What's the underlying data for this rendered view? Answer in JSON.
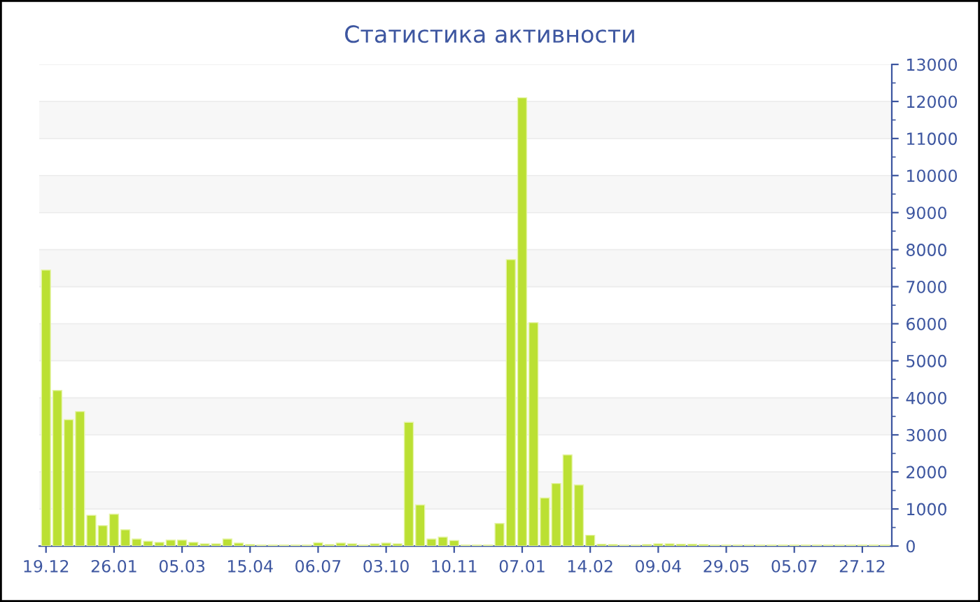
{
  "chart_data": {
    "type": "bar",
    "title": "Статистика активности",
    "categories": [
      "19.12",
      null,
      null,
      null,
      null,
      null,
      "26.01",
      null,
      null,
      null,
      null,
      null,
      "05.03",
      null,
      null,
      null,
      null,
      null,
      "15.04",
      null,
      null,
      null,
      null,
      null,
      "06.07",
      null,
      null,
      null,
      null,
      null,
      "03.10",
      null,
      null,
      null,
      null,
      null,
      "10.11",
      null,
      null,
      null,
      null,
      null,
      "07.01",
      null,
      null,
      null,
      null,
      null,
      "14.02",
      null,
      null,
      null,
      null,
      null,
      "09.04",
      null,
      null,
      null,
      null,
      null,
      "29.05",
      null,
      null,
      null,
      null,
      null,
      "05.07",
      null,
      null,
      null,
      null,
      null,
      "27.12",
      null,
      null
    ],
    "values": [
      7450,
      4200,
      3410,
      3630,
      830,
      550,
      860,
      440,
      190,
      130,
      100,
      160,
      160,
      100,
      60,
      60,
      190,
      80,
      40,
      30,
      30,
      30,
      30,
      30,
      90,
      40,
      80,
      60,
      30,
      60,
      80,
      60,
      3340,
      1110,
      190,
      240,
      150,
      30,
      30,
      30,
      610,
      7730,
      12100,
      6030,
      1300,
      1690,
      2460,
      1650,
      290,
      50,
      40,
      30,
      30,
      40,
      60,
      60,
      50,
      50,
      40,
      30,
      30,
      30,
      30,
      30,
      30,
      30,
      30,
      30,
      30,
      30,
      30,
      30,
      30,
      30,
      30
    ],
    "color": "#bbe033",
    "ylim": [
      0,
      13000
    ],
    "yticks": [
      0,
      1000,
      2000,
      3000,
      4000,
      5000,
      6000,
      7000,
      8000,
      9000,
      10000,
      11000,
      12000,
      13000
    ],
    "grid": "y"
  }
}
